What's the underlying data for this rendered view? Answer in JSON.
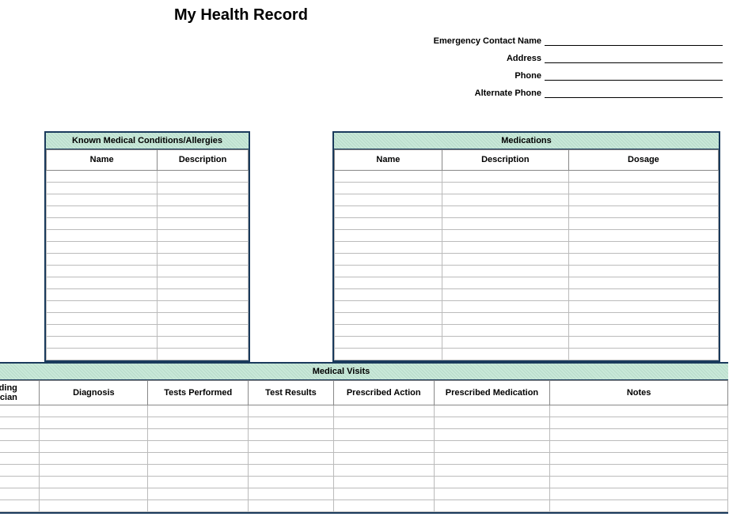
{
  "title": "My Health Record",
  "contact": {
    "fields": [
      {
        "label": "Emergency Contact Name"
      },
      {
        "label": "Address"
      },
      {
        "label": "Phone"
      },
      {
        "label": "Alternate Phone"
      }
    ]
  },
  "colors": {
    "border": "#1a3a5c",
    "header_bg": "#c8e8d8",
    "cell_border": "#bbbbbb",
    "col_border": "#888888"
  },
  "typography": {
    "title_fontsize": 20,
    "section_header_fontsize": 11,
    "col_header_fontsize": 11,
    "label_fontsize": 11
  },
  "sections": {
    "conditions": {
      "title": "Known Medical Conditions/Allergies",
      "columns": [
        "Name",
        "Description"
      ],
      "column_widths": [
        0.55,
        0.45
      ],
      "row_count": 16
    },
    "medications": {
      "title": "Medications",
      "columns": [
        "Name",
        "Description",
        "Dosage"
      ],
      "column_widths": [
        0.28,
        0.33,
        0.39
      ],
      "row_count": 16
    },
    "visits": {
      "title": "Medical Visits",
      "columns": [
        "Attending Physician",
        "Diagnosis",
        "Tests Performed",
        "Test Results",
        "Prescribed Action",
        "Prescribed Medication",
        "Notes"
      ],
      "column_widths": [
        0.11,
        0.14,
        0.13,
        0.11,
        0.13,
        0.15,
        0.23
      ],
      "row_count": 9
    }
  }
}
